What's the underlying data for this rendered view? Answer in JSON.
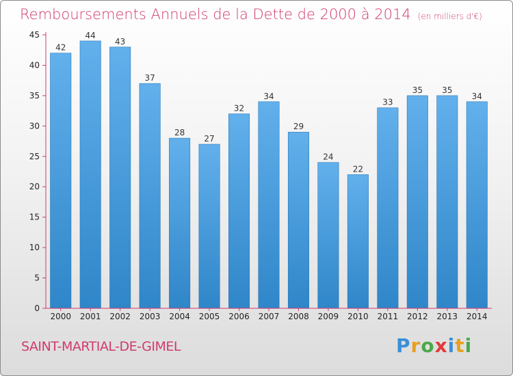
{
  "header": {
    "title": "Remboursements Annuels de la Dette de 2000 à 2014",
    "unit": "(en milliers d'€)"
  },
  "footer": {
    "city": "SAINT-MARTIAL-DE-GIMEL",
    "logo_letters": [
      "P",
      "r",
      "o",
      "x",
      "i",
      "t",
      "i"
    ],
    "logo_colors": [
      "#3a8fd8",
      "#e8a020",
      "#4aa84a",
      "#e23a3a",
      "#3a8fd8",
      "#e8a020",
      "#4aa84a"
    ]
  },
  "chart_data": {
    "type": "bar",
    "title": "Remboursements Annuels de la Dette de 2000 à 2014",
    "xlabel": "",
    "ylabel": "",
    "categories": [
      "2000",
      "2001",
      "2002",
      "2003",
      "2004",
      "2005",
      "2006",
      "2007",
      "2008",
      "2009",
      "2010",
      "2011",
      "2012",
      "2013",
      "2014"
    ],
    "values": [
      42,
      44,
      43,
      37,
      28,
      27,
      32,
      34,
      29,
      24,
      22,
      33,
      35,
      35,
      34
    ],
    "ylim": [
      0,
      45
    ],
    "yticks": [
      0,
      5,
      10,
      15,
      20,
      25,
      30,
      35,
      40,
      45
    ],
    "grid": false,
    "bar_color": "#4a9fe0",
    "axis_color": "#d03a6c"
  }
}
